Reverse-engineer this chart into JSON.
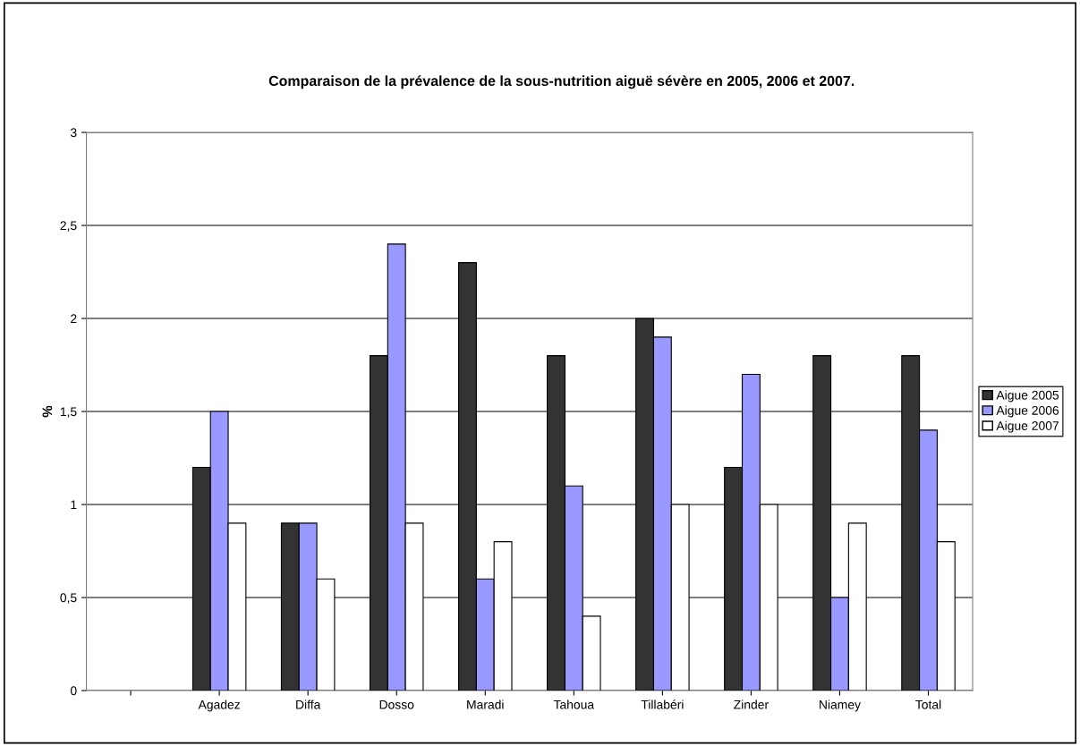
{
  "chart_data": {
    "type": "bar",
    "title": "Comparaison de la prévalence de la sous-nutrition aiguë sévère en 2005, 2006 et 2007.",
    "ylabel": "%",
    "categories": [
      null,
      "Agadez",
      "Diffa",
      "Dosso",
      "Maradi",
      "Tahoua",
      "Tillabéri",
      "Zinder",
      "Niamey",
      "Total"
    ],
    "series": [
      {
        "name": "Aigue 2005",
        "color": "#333333",
        "values": [
          null,
          1.2,
          0.9,
          1.8,
          2.3,
          1.8,
          2.0,
          1.2,
          1.8,
          1.8
        ]
      },
      {
        "name": "Aigue 2006",
        "color": "#9999ff",
        "values": [
          null,
          1.5,
          0.9,
          2.4,
          0.6,
          1.1,
          1.9,
          1.7,
          0.5,
          1.4
        ]
      },
      {
        "name": "Aigue 2007",
        "color": "#ffffff",
        "values": [
          null,
          0.9,
          0.6,
          0.9,
          0.8,
          0.4,
          1.0,
          1.0,
          0.9,
          0.8
        ]
      }
    ],
    "ylim": [
      0,
      3
    ],
    "yticks": [
      0,
      {
        "value": 0.5,
        "label": "0,5"
      },
      1,
      {
        "value": 1.5,
        "label": "1,5"
      },
      2,
      {
        "value": 2.5,
        "label": "2,5"
      },
      3
    ],
    "grid": "y",
    "legend": "right"
  }
}
